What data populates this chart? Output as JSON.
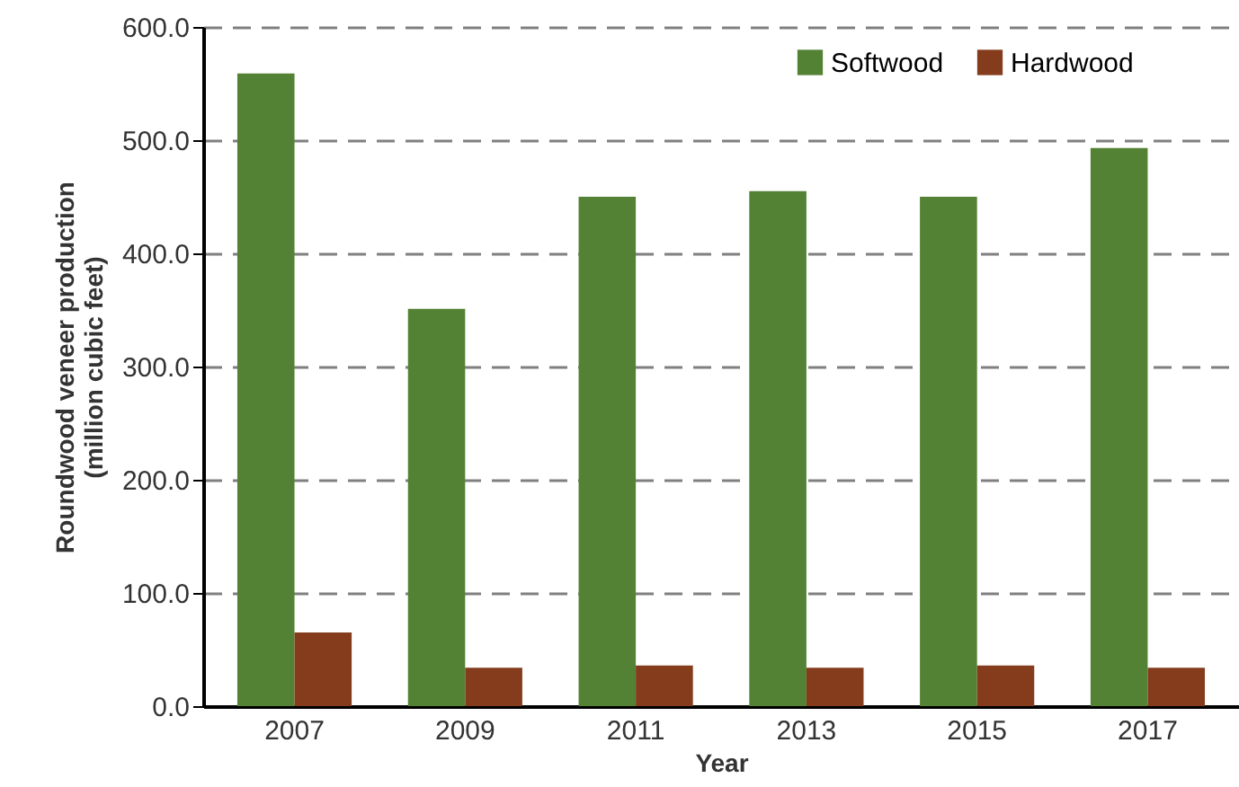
{
  "chart_data": {
    "type": "bar",
    "xlabel": "Year",
    "ylabel": "Roundwood veneer production\n(million cubic feet)",
    "categories": [
      "2007",
      "2009",
      "2011",
      "2013",
      "2015",
      "2017"
    ],
    "series": [
      {
        "name": "Softwood",
        "color": "#548235",
        "values": [
          559,
          351,
          450,
          455,
          450,
          493
        ]
      },
      {
        "name": "Hardwood",
        "color": "#843c1c",
        "values": [
          65,
          34,
          36,
          34,
          36,
          34
        ]
      }
    ],
    "ylim": [
      0,
      600
    ],
    "yticks": [
      {
        "value": 0,
        "label": "0.0"
      },
      {
        "value": 100,
        "label": "100.0"
      },
      {
        "value": 200,
        "label": "200.0"
      },
      {
        "value": 300,
        "label": "300.0"
      },
      {
        "value": 400,
        "label": "400.0"
      },
      {
        "value": 500,
        "label": "500.0"
      },
      {
        "value": 600,
        "label": "600.0"
      }
    ],
    "grid": "y",
    "legend": "top right"
  }
}
